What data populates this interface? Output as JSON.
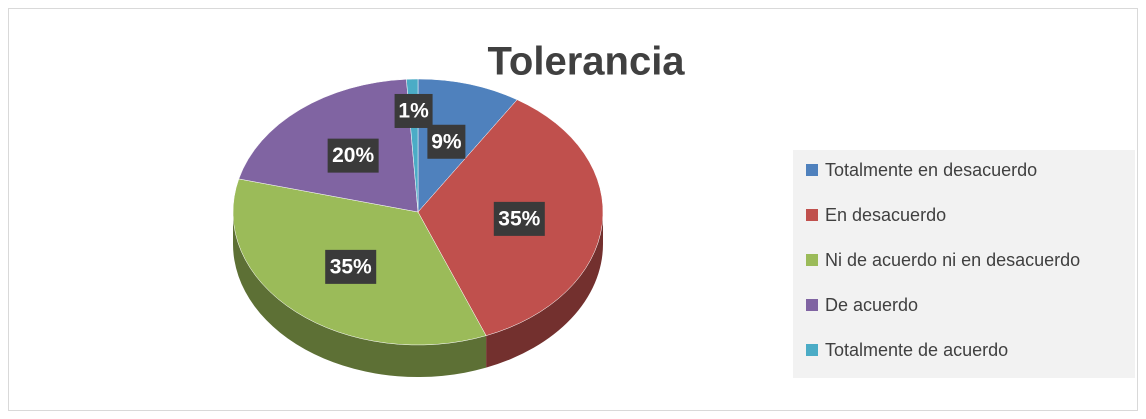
{
  "chart_data": {
    "type": "pie",
    "title": "Tolerancia",
    "categories": [
      "Totalmente en desacuerdo",
      "En desacuerdo",
      "Ni de acuerdo ni en desacuerdo",
      "De acuerdo",
      "Totalmente de acuerdo"
    ],
    "values": [
      9,
      35,
      35,
      20,
      1
    ],
    "value_labels": [
      "9%",
      "35%",
      "35%",
      "20%",
      "1%"
    ],
    "colors": [
      "#4f81bd",
      "#c0504d",
      "#9bbb59",
      "#8064a2",
      "#4bacc6"
    ],
    "legend": "right"
  }
}
